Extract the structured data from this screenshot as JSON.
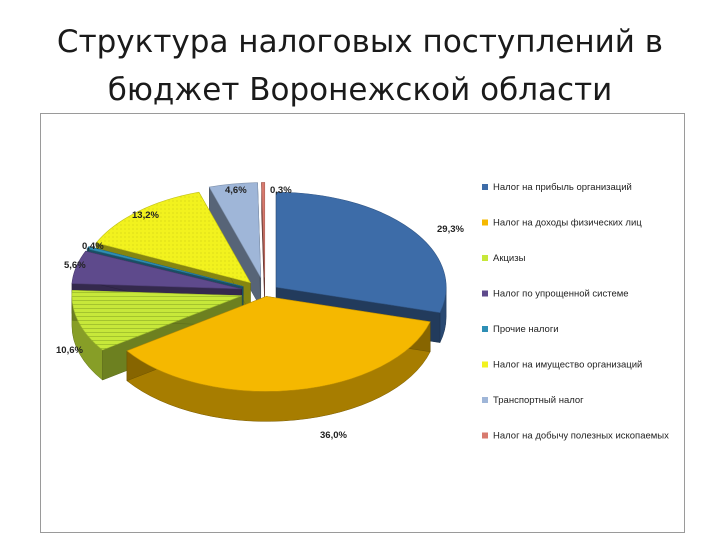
{
  "slide": {
    "title_line1": "Структура налоговых поступлений в",
    "title_line2": "бюджет Воронежской области"
  },
  "chart_data": {
    "type": "pie",
    "style": "3d-exploded",
    "legend_position": "right",
    "categories": [
      "Налог на прибыль организаций",
      "Налог на доходы физических лиц",
      "Акцизы",
      "Налог по упрощенной системе",
      "Прочие налоги",
      "Налог на имущество организаций",
      "Транспортный налог",
      "Налог на добычу полезных ископаемых"
    ],
    "values": [
      29.3,
      36.0,
      10.6,
      5.6,
      0.4,
      13.2,
      4.6,
      0.3
    ],
    "data_labels": [
      "29,3%",
      "36,0%",
      "10,6%",
      "5,6%",
      "0,4%",
      "13,2%",
      "4,6%",
      "0,3%"
    ],
    "colors": [
      "#3d6ca8",
      "#f5b800",
      "#c7e83a",
      "#5e4a8c",
      "#2e8fb5",
      "#f2f21e",
      "#9fb6d8",
      "#d87a6e"
    ],
    "patterns": [
      null,
      null,
      "stripes",
      null,
      null,
      "dots",
      null,
      null
    ]
  }
}
